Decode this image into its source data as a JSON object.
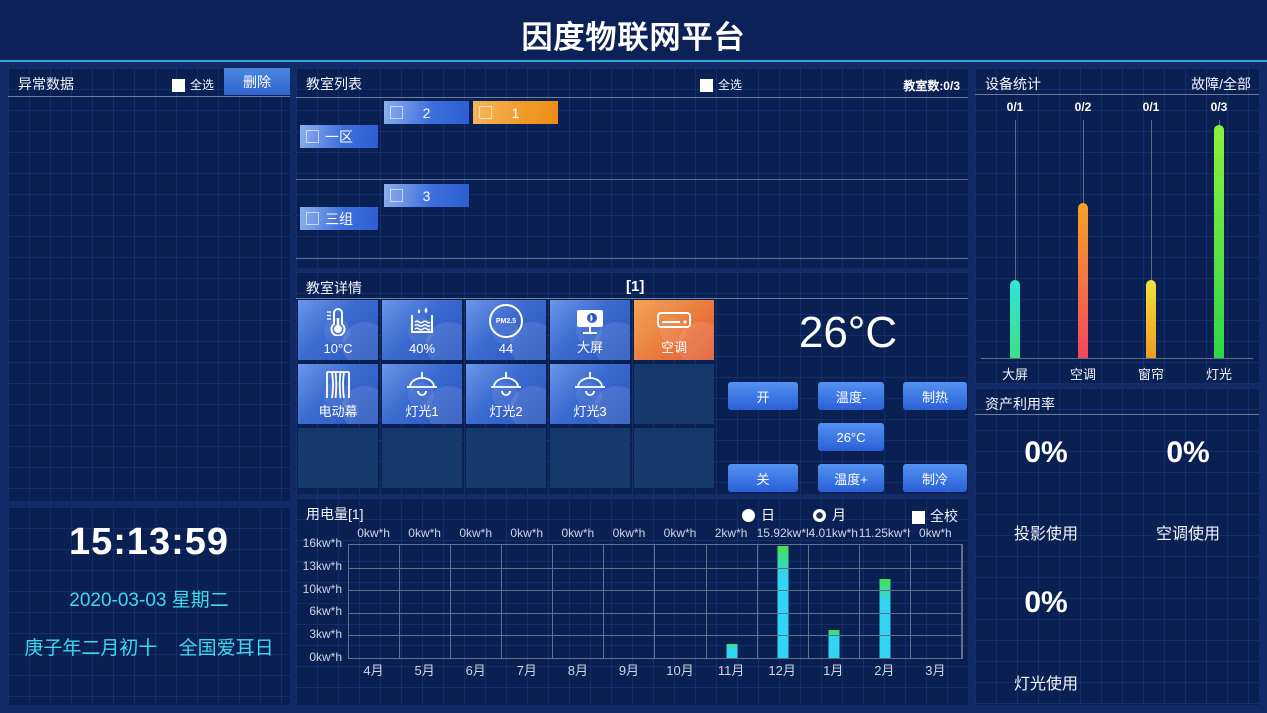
{
  "header": {
    "title": "因度物联网平台"
  },
  "abnormal_panel": {
    "title": "异常数据",
    "select_all": "全选",
    "delete_button": "删除"
  },
  "clock_panel": {
    "time": "15:13:59",
    "date": "2020-03-03 星期二",
    "lunar": "庚子年二月初十",
    "festival": "全国爱耳日"
  },
  "classroom_list": {
    "title": "教室列表",
    "select_all": "全选",
    "count": "教室数:0/3",
    "rooms": [
      {
        "label": "2"
      },
      {
        "label": "1"
      },
      {
        "label": "3"
      }
    ],
    "groups": [
      {
        "label": "一区"
      },
      {
        "label": "三组"
      }
    ]
  },
  "classroom_detail": {
    "title": "教室详情",
    "badge": "[1]",
    "tiles": [
      {
        "label": "10°C",
        "icon": "thermometer"
      },
      {
        "label": "40%",
        "icon": "humidity"
      },
      {
        "label": "44",
        "icon": "pm25",
        "icon_text": "PM2.5"
      },
      {
        "label": "大屏",
        "icon": "screen"
      },
      {
        "label": "空调",
        "icon": "air-conditioner"
      },
      {
        "label": "电动幕",
        "icon": "curtain"
      },
      {
        "label": "灯光1",
        "icon": "lamp"
      },
      {
        "label": "灯光2",
        "icon": "lamp"
      },
      {
        "label": "灯光3",
        "icon": "lamp"
      }
    ],
    "temperature": "26°C",
    "controls": {
      "on": "开",
      "temp_minus": "温度-",
      "heat": "制热",
      "set_temp": "26°C",
      "off": "关",
      "temp_plus": "温度+",
      "cool": "制冷"
    }
  },
  "power_panel": {
    "title": "用电量[1]",
    "radio_day": "日",
    "radio_month": "月",
    "checkbox_all": "全校"
  },
  "device_panel": {
    "title": "设备统计",
    "legend": "故障/全部"
  },
  "asset_panel": {
    "title": "资产利用率",
    "items": [
      {
        "value": "0%",
        "label": "投影使用"
      },
      {
        "value": "0%",
        "label": "空调使用"
      },
      {
        "value": "0%",
        "label": "灯光使用"
      }
    ]
  },
  "chart_data": [
    {
      "name": "power_usage",
      "type": "bar",
      "title": "用电量[1]",
      "categories": [
        "4月",
        "5月",
        "6月",
        "7月",
        "8月",
        "9月",
        "10月",
        "11月",
        "12月",
        "1月",
        "2月",
        "3月"
      ],
      "values": [
        0,
        0,
        0,
        0,
        0,
        0,
        0,
        2,
        15.92,
        4.01,
        11.25,
        0
      ],
      "value_labels": [
        "0kw*h",
        "0kw*h",
        "0kw*h",
        "0kw*h",
        "0kw*h",
        "0kw*h",
        "0kw*h",
        "2kw*h",
        "15.92kw*h",
        "4.01kw*h",
        "11.25kw*h",
        "0kw*h"
      ],
      "y_ticks": [
        "0kw*h",
        "3kw*h",
        "6kw*h",
        "10kw*h",
        "13kw*h",
        "16kw*h"
      ],
      "ylim": [
        0,
        16
      ],
      "grid": true,
      "bar_color_top": "#46e14b",
      "bar_color_body": "#31d4f1"
    },
    {
      "name": "device_stats",
      "type": "bar",
      "title": "设备统计",
      "legend": "故障/全部",
      "categories": [
        "大屏",
        "空调",
        "窗帘",
        "灯光"
      ],
      "values": [
        1,
        2,
        1,
        3
      ],
      "value_labels": [
        "0/1",
        "0/2",
        "0/1",
        "0/3"
      ],
      "ylim": [
        0,
        3
      ],
      "bar_colors": [
        [
          "#2fe6d8",
          "#3ce087"
        ],
        [
          "#f7a226",
          "#f2485c"
        ],
        [
          "#f0e23a",
          "#f29a20"
        ],
        [
          "#8df03a",
          "#2ed648"
        ]
      ]
    }
  ]
}
